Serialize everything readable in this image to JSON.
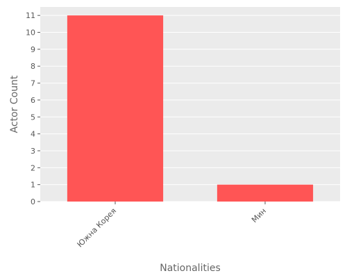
{
  "chart_data": {
    "type": "bar",
    "categories": [
      "Южна Корея",
      "Мин"
    ],
    "values": [
      11,
      1
    ],
    "title": "",
    "xlabel": "Nationalities",
    "ylabel": "Actor Count",
    "ylim": [
      0,
      11.5
    ],
    "yticks": [
      0,
      1,
      2,
      3,
      4,
      5,
      6,
      7,
      8,
      9,
      10,
      11
    ],
    "grid": true,
    "legend": "none",
    "colors": {
      "bar": "#ff5555",
      "plot_background": "#ebebeb",
      "grid": "#ffffff",
      "tick_text": "#555555",
      "axis_title": "#666666"
    }
  }
}
